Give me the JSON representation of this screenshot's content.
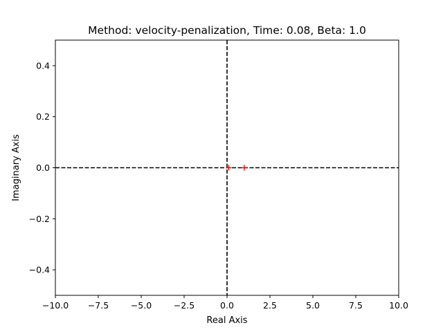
{
  "chart_data": {
    "type": "scatter",
    "title": "Method: velocity-penalization, Time: 0.08, Beta: 1.0",
    "xlabel": "Real Axis",
    "ylabel": "Imaginary Axis",
    "xlim": [
      -10.0,
      10.0
    ],
    "ylim": [
      -0.5,
      0.5
    ],
    "xticks": [
      -10.0,
      -7.5,
      -5.0,
      -2.5,
      0.0,
      2.5,
      5.0,
      7.5,
      10.0
    ],
    "xtick_labels": [
      "−10.0",
      "−7.5",
      "−5.0",
      "−2.5",
      "0.0",
      "2.5",
      "5.0",
      "7.5",
      "10.0"
    ],
    "yticks": [
      -0.4,
      -0.2,
      0.0,
      0.2,
      0.4
    ],
    "ytick_labels": [
      "−0.4",
      "−0.2",
      "0.0",
      "0.2",
      "0.4"
    ],
    "grid": false,
    "reference_lines": [
      {
        "orientation": "vertical",
        "value": 0.0,
        "style": "dashed",
        "color": "#000000"
      },
      {
        "orientation": "horizontal",
        "value": 0.0,
        "style": "dashed",
        "color": "#000000"
      }
    ],
    "series": [
      {
        "marker": "plus",
        "color": "#ff0000",
        "points": [
          {
            "x": 0.1,
            "y": 0.0
          },
          {
            "x": 1.0,
            "y": 0.0
          }
        ]
      }
    ]
  }
}
